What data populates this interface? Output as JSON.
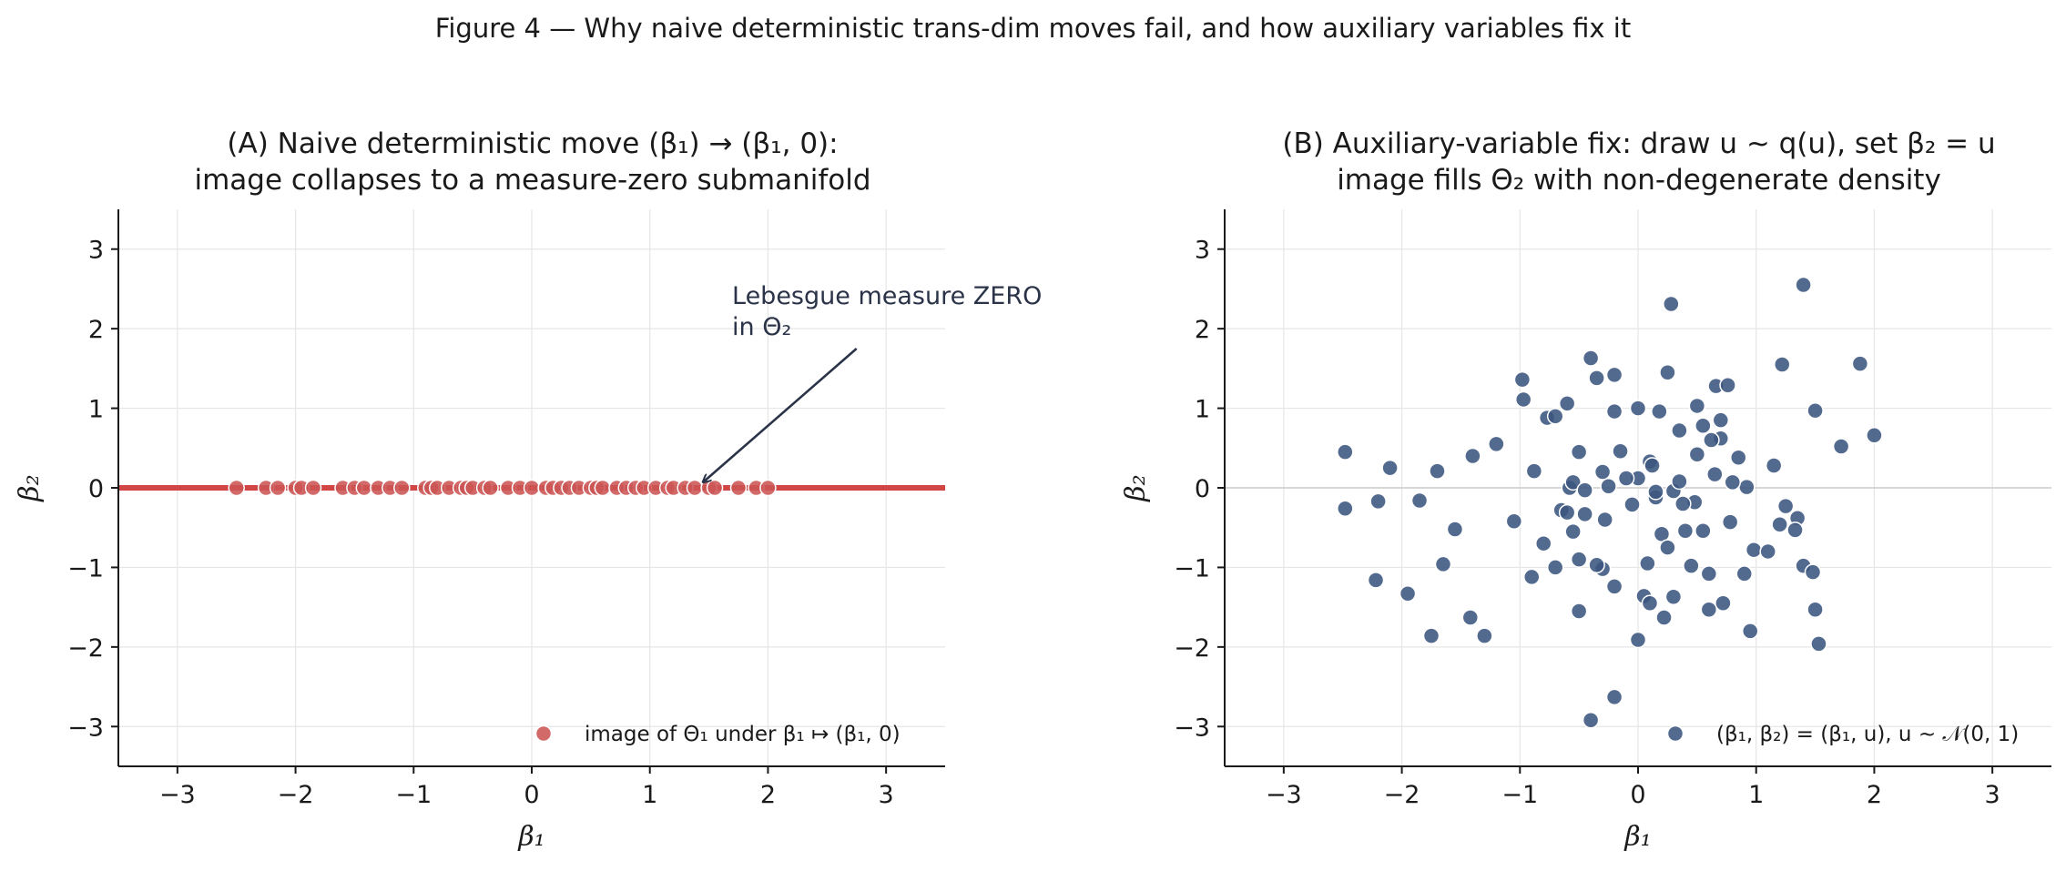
{
  "figure": {
    "suptitle": "Figure 4 — Why naive deterministic trans-dim moves fail, and how auxiliary variables fix it"
  },
  "panels": {
    "a": {
      "title_line1": "(A) Naive deterministic move (β₁) → (β₁, 0):",
      "title_line2": "image collapses to a measure-zero submanifold",
      "annotation_line1": "Lebesgue measure ZERO",
      "annotation_line2": "in Θ₂",
      "legend": "image of Θ₁ under β₁ ↦ (β₁, 0)",
      "xlabel": "β₁",
      "ylabel": "β₂"
    },
    "b": {
      "title_line1": "(B) Auxiliary-variable fix: draw u ~ q(u), set β₂ = u",
      "title_line2": "image fills Θ₂ with non-degenerate density",
      "legend": "(β₁, β₂) = (β₁, u), u ~ 𝒩(0, 1)",
      "xlabel": "β₁",
      "ylabel": "β₂"
    }
  },
  "colors": {
    "red": "#d24545",
    "red_points": "#cc5555",
    "blue_points": "#3b5580",
    "annotation": "#2a3347",
    "grid": "#e6e6e6"
  },
  "chart_data": [
    {
      "type": "scatter",
      "title": "(A) Naive deterministic move (β₁) → (β₁, 0): image collapses to a measure-zero submanifold",
      "xlabel": "β₁",
      "ylabel": "β₂",
      "xlim": [
        -3.5,
        3.5
      ],
      "ylim": [
        -3.5,
        3.5
      ],
      "xticks": [
        -3,
        -2,
        -1,
        0,
        1,
        2,
        3
      ],
      "yticks": [
        -3,
        -2,
        -1,
        0,
        1,
        2,
        3
      ],
      "tick_labels": [
        "−3",
        "−2",
        "−1",
        "0",
        "1",
        "2",
        "3"
      ],
      "grid": true,
      "legend_position": "bottom-right",
      "line": {
        "y": 0
      },
      "annotation_arrow": {
        "from": [
          2.75,
          1.75
        ],
        "to": [
          1.45,
          0.07
        ]
      },
      "series": [
        {
          "name": "image of Θ₁ under β₁ ↦ (β₁, 0)",
          "x": [
            -2.5,
            -2.25,
            -2.15,
            -2.0,
            -1.95,
            -1.85,
            -1.6,
            -1.5,
            -1.42,
            -1.3,
            -1.2,
            -1.1,
            -0.9,
            -0.85,
            -0.8,
            -0.7,
            -0.6,
            -0.55,
            -0.5,
            -0.4,
            -0.35,
            -0.2,
            -0.1,
            0.0,
            0.12,
            0.18,
            0.25,
            0.32,
            0.4,
            0.5,
            0.55,
            0.6,
            0.72,
            0.8,
            0.88,
            0.95,
            1.05,
            1.15,
            1.2,
            1.3,
            1.38,
            1.5,
            1.55,
            1.75,
            1.9,
            2.0
          ],
          "y": [
            0,
            0,
            0,
            0,
            0,
            0,
            0,
            0,
            0,
            0,
            0,
            0,
            0,
            0,
            0,
            0,
            0,
            0,
            0,
            0,
            0,
            0,
            0,
            0,
            0,
            0,
            0,
            0,
            0,
            0,
            0,
            0,
            0,
            0,
            0,
            0,
            0,
            0,
            0,
            0,
            0,
            0,
            0,
            0,
            0,
            0
          ]
        }
      ]
    },
    {
      "type": "scatter",
      "title": "(B) Auxiliary-variable fix: draw u ~ q(u), set β₂ = u image fills Θ₂ with non-degenerate density",
      "xlabel": "β₁",
      "ylabel": "β₂",
      "xlim": [
        -3.5,
        3.5
      ],
      "ylim": [
        -3.5,
        3.5
      ],
      "xticks": [
        -3,
        -2,
        -1,
        0,
        1,
        2,
        3
      ],
      "yticks": [
        -3,
        -2,
        -1,
        0,
        1,
        2,
        3
      ],
      "tick_labels": [
        "−3",
        "−2",
        "−1",
        "0",
        "1",
        "2",
        "3"
      ],
      "grid": true,
      "legend_position": "bottom-right",
      "line": {
        "y": 0
      },
      "series": [
        {
          "name": "(β₁, β₂) = (β₁, u), u ~ 𝒩(0, 1)",
          "x": [
            1.4,
            0.28,
            -0.4,
            -0.2,
            1.88,
            -0.35,
            -0.98,
            0.25,
            0.66,
            0.76,
            1.22,
            -0.97,
            -0.6,
            0.5,
            -0.5,
            -0.2,
            0.18,
            1.5,
            1.72,
            0.7,
            2.0,
            -0.77,
            0.0,
            0.55,
            0.7,
            1.15,
            -1.7,
            -2.48,
            -2.1,
            -0.88,
            -1.4,
            0.1,
            0.5,
            0.85,
            0.35,
            -0.15,
            -0.3,
            0.0,
            -1.2,
            -0.7,
            -0.58,
            0.92,
            -0.25,
            0.3,
            -1.85,
            -2.2,
            -2.48,
            1.25,
            1.35,
            0.15,
            -0.05,
            -0.65,
            -0.45,
            0.4,
            1.2,
            -1.55,
            -1.05,
            -0.55,
            0.2,
            0.55,
            0.78,
            0.98,
            1.1,
            1.33,
            -0.3,
            -0.5,
            0.08,
            -0.35,
            0.45,
            0.6,
            1.4,
            1.48,
            -0.9,
            -0.7,
            -1.65,
            -0.2,
            0.05,
            0.3,
            -1.95,
            -2.22,
            0.1,
            0.72,
            0.6,
            0.9,
            -0.5,
            -1.75,
            -1.42,
            -1.3,
            0.22,
            1.5,
            1.53,
            0.95,
            0.0,
            -0.4,
            -0.2,
            -0.6,
            0.15,
            0.8,
            0.65,
            0.35,
            -0.55,
            -0.8,
            -0.28,
            0.48,
            0.25,
            -0.1,
            0.38,
            0.62,
            -0.45,
            0.12
          ],
          "y": [
            2.55,
            2.31,
            1.63,
            1.42,
            1.56,
            1.38,
            1.36,
            1.45,
            1.28,
            1.29,
            1.55,
            1.11,
            1.06,
            1.03,
            0.45,
            0.96,
            0.96,
            0.97,
            0.52,
            0.85,
            0.66,
            0.88,
            1.0,
            0.78,
            0.62,
            0.28,
            0.21,
            0.45,
            0.25,
            0.21,
            0.4,
            0.33,
            0.42,
            0.38,
            0.72,
            0.46,
            0.2,
            0.12,
            0.55,
            0.9,
            0.0,
            0.01,
            0.02,
            -0.04,
            -0.16,
            -0.17,
            -0.26,
            -0.23,
            -0.38,
            -0.12,
            -0.21,
            -0.28,
            -0.33,
            -0.54,
            -0.46,
            -0.52,
            -0.42,
            -0.55,
            -0.58,
            -0.54,
            -0.43,
            -0.78,
            -0.8,
            -0.53,
            -1.02,
            -0.9,
            -0.95,
            -0.97,
            -0.98,
            -1.08,
            -0.98,
            -1.06,
            -1.12,
            -1.0,
            -0.96,
            -1.24,
            -1.36,
            -1.37,
            -1.33,
            -1.16,
            -1.45,
            -1.45,
            -1.53,
            -1.08,
            -1.55,
            -1.86,
            -1.63,
            -1.86,
            -1.63,
            -1.53,
            -1.96,
            -1.8,
            -1.91,
            -2.92,
            -2.63,
            -0.31,
            -0.05,
            0.07,
            0.17,
            0.08,
            0.07,
            -0.7,
            -0.4,
            -0.18,
            -0.75,
            0.12,
            -0.2,
            0.6,
            -0.03,
            0.28
          ]
        }
      ]
    }
  ]
}
